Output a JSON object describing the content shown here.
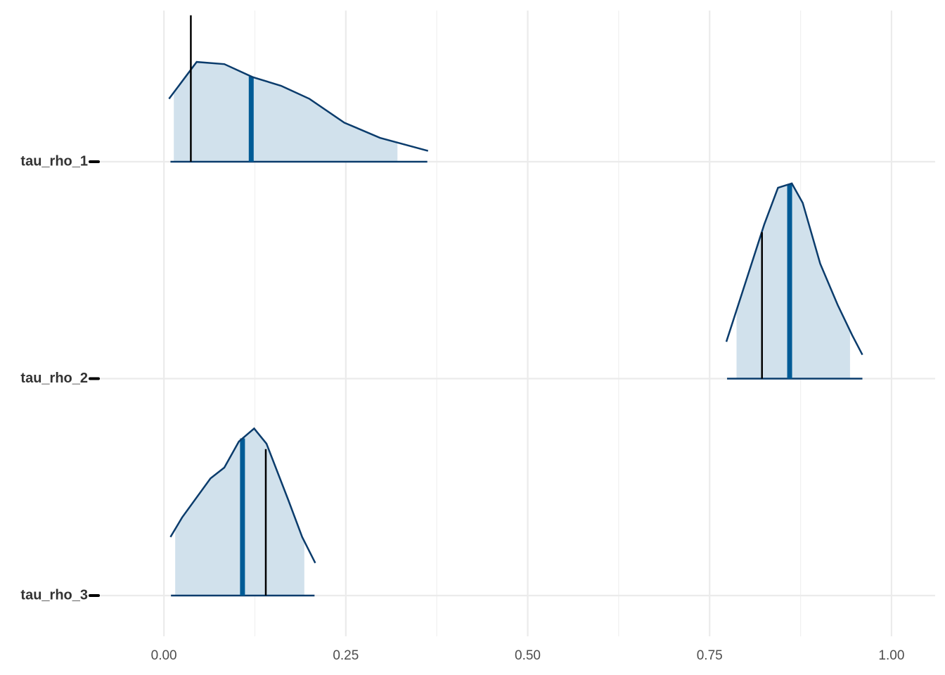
{
  "chart_data": {
    "type": "areas",
    "xlim": [
      -0.09,
      1.06
    ],
    "xticks": [
      {
        "value": 0,
        "label": "0.00"
      },
      {
        "value": 0.25,
        "label": "0.25"
      },
      {
        "value": 0.5,
        "label": "0.50"
      },
      {
        "value": 0.75,
        "label": "0.75"
      },
      {
        "value": 1,
        "label": "1.00"
      }
    ],
    "grid": true,
    "fill_color": "#d1e1ec",
    "line_color": "#0b3c6c",
    "median_color": "#005b96",
    "true_color": "#000000",
    "series": [
      {
        "name": "tau_rho_1",
        "x": [
          0.007,
          0.045,
          0.083,
          0.122,
          0.161,
          0.2,
          0.248,
          0.297,
          0.363
        ],
        "density": [
          0.29,
          0.46,
          0.45,
          0.39,
          0.35,
          0.29,
          0.18,
          0.11,
          0.05
        ],
        "inner": [
          0.0136,
          0.321
        ],
        "outer": [
          0.009,
          0.362
        ],
        "median": 0.12,
        "true_value": 0.037
      },
      {
        "name": "tau_rho_2",
        "x": [
          0.773,
          0.8,
          0.825,
          0.844,
          0.863,
          0.878,
          0.902,
          0.926,
          0.946,
          0.96
        ],
        "density": [
          0.17,
          0.45,
          0.71,
          0.88,
          0.9,
          0.81,
          0.53,
          0.34,
          0.2,
          0.11
        ],
        "inner": [
          0.787,
          0.943
        ],
        "outer": [
          0.774,
          0.96
        ],
        "median": 0.86,
        "true_value": 0.822
      },
      {
        "name": "tau_rho_3",
        "x": [
          0.009,
          0.025,
          0.064,
          0.083,
          0.103,
          0.124,
          0.141,
          0.171,
          0.19,
          0.208
        ],
        "density": [
          0.27,
          0.36,
          0.54,
          0.59,
          0.71,
          0.77,
          0.7,
          0.44,
          0.27,
          0.15
        ],
        "inner": [
          0.0155,
          0.193
        ],
        "outer": [
          0.0097,
          0.207
        ],
        "median": 0.108,
        "true_value": 0.14
      }
    ]
  }
}
